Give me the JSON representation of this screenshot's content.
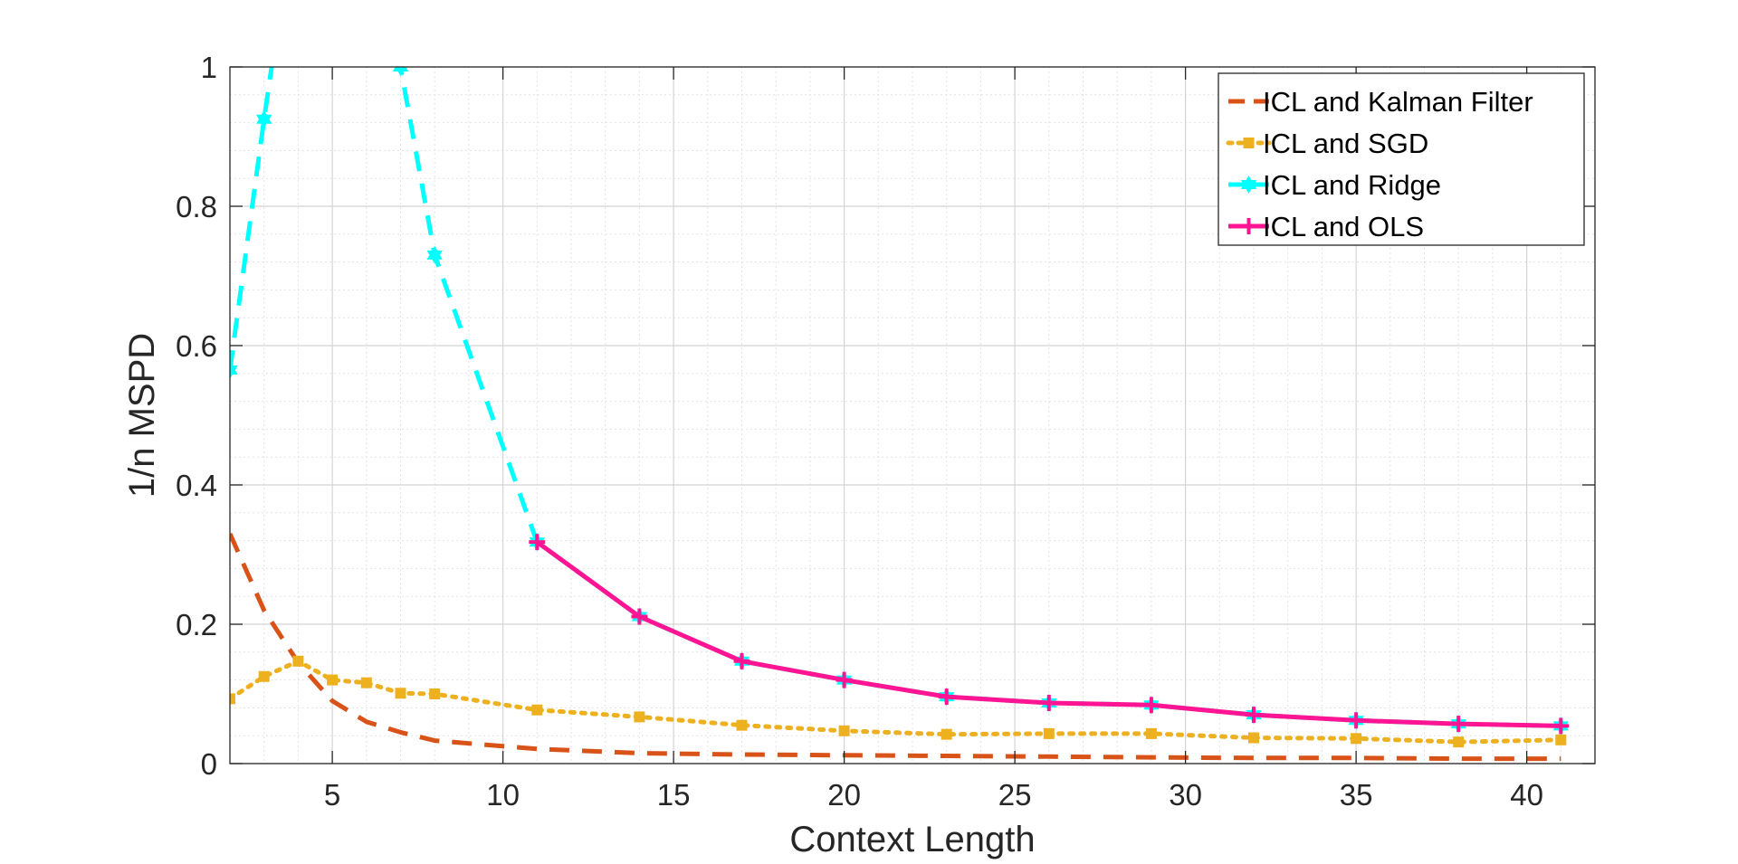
{
  "chart_data": {
    "type": "line",
    "xlabel": "Context Length",
    "ylabel": "1/n MSPD",
    "xlim": [
      2,
      42
    ],
    "ylim": [
      0,
      1
    ],
    "xticks": [
      5,
      10,
      15,
      20,
      25,
      30,
      35,
      40
    ],
    "yticks": [
      0,
      0.2,
      0.4,
      0.6,
      0.8,
      1
    ],
    "x_tick_labels": [
      "5",
      "10",
      "15",
      "20",
      "25",
      "30",
      "35",
      "40"
    ],
    "y_tick_labels": [
      "0",
      "0.2",
      "0.4",
      "0.6",
      "0.8",
      "1"
    ],
    "grid": true,
    "minor_grid": true,
    "legend_position": "top-right",
    "series": [
      {
        "name": "ICL and Kalman Filter",
        "color": "#D95319",
        "line_style": "dashed",
        "marker": "none",
        "x": [
          2,
          3,
          4,
          5,
          6,
          7,
          8,
          11,
          14,
          17,
          20,
          23,
          26,
          29,
          32,
          35,
          38,
          41
        ],
        "y": [
          0.33,
          0.22,
          0.145,
          0.09,
          0.06,
          0.045,
          0.033,
          0.021,
          0.015,
          0.013,
          0.012,
          0.011,
          0.01,
          0.009,
          0.008,
          0.008,
          0.007,
          0.007
        ]
      },
      {
        "name": "ICL and SGD",
        "color": "#EDB120",
        "line_style": "dotted",
        "marker": "square",
        "x": [
          2,
          3,
          4,
          5,
          6,
          7,
          8,
          11,
          14,
          17,
          20,
          23,
          26,
          29,
          32,
          35,
          38,
          41
        ],
        "y": [
          0.093,
          0.125,
          0.147,
          0.12,
          0.116,
          0.101,
          0.1,
          0.077,
          0.067,
          0.055,
          0.047,
          0.042,
          0.043,
          0.043,
          0.037,
          0.036,
          0.031,
          0.034
        ]
      },
      {
        "name": "ICL and Ridge",
        "color": "#00FFFF",
        "line_style": "dashed",
        "marker": "hexagram",
        "x": [
          2,
          3,
          5,
          7,
          8,
          11,
          14,
          17,
          20,
          23,
          26,
          29,
          32,
          35,
          38,
          41
        ],
        "y": [
          0.565,
          0.925,
          1.6,
          1.0,
          0.73,
          0.318,
          0.211,
          0.147,
          0.12,
          0.096,
          0.087,
          0.084,
          0.07,
          0.062,
          0.057,
          0.054
        ]
      },
      {
        "name": "ICL and OLS",
        "color": "#FF1493",
        "line_style": "solid",
        "marker": "plus",
        "x": [
          11,
          14,
          17,
          20,
          23,
          26,
          29,
          32,
          35,
          38,
          41
        ],
        "y": [
          0.318,
          0.211,
          0.147,
          0.12,
          0.096,
          0.087,
          0.084,
          0.07,
          0.062,
          0.057,
          0.054
        ]
      }
    ]
  }
}
